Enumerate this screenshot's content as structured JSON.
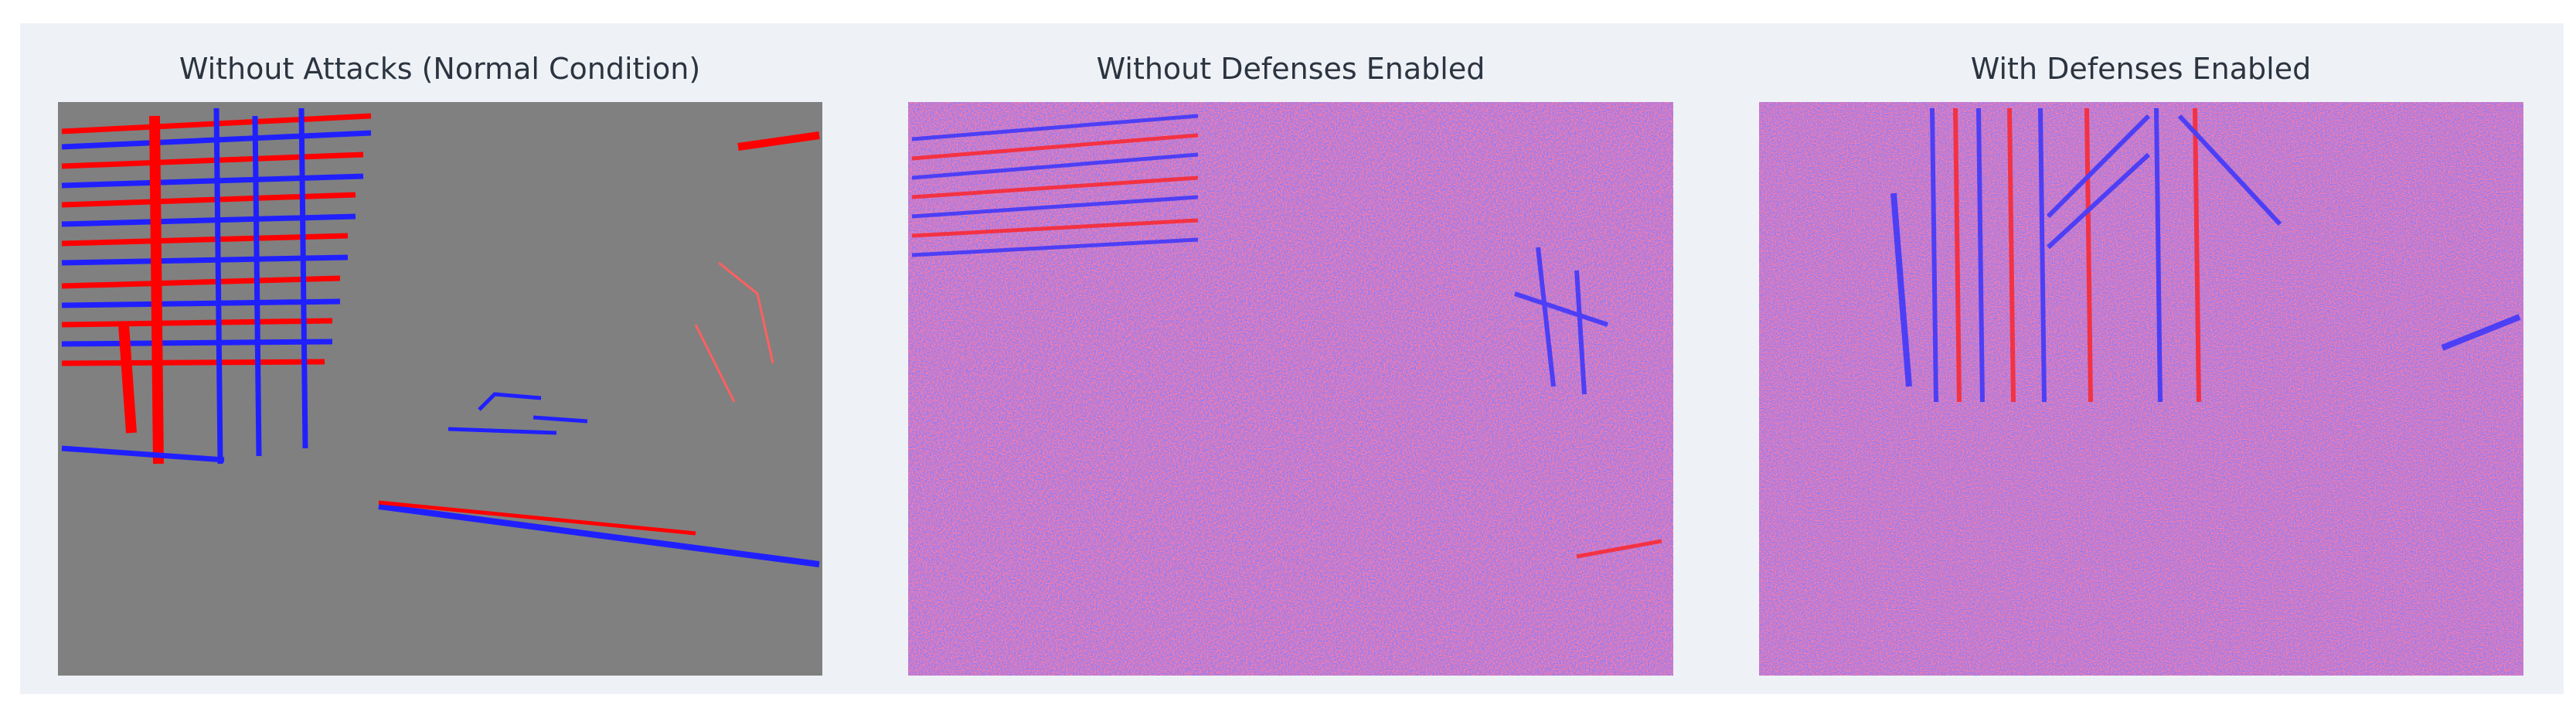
{
  "panels": [
    {
      "title": "Without Attacks (Normal Condition)"
    },
    {
      "title": "Without Defenses Enabled"
    },
    {
      "title": "With Defenses Enabled"
    }
  ]
}
